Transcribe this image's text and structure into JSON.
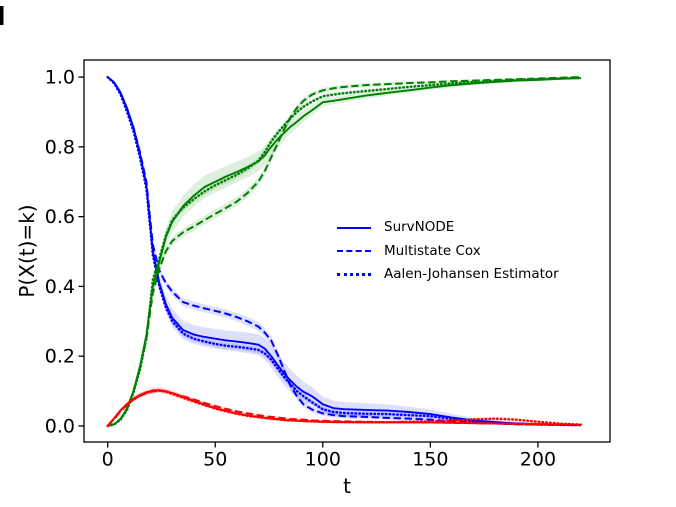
{
  "chart_data": {
    "type": "line",
    "title": "",
    "xlabel": "t",
    "ylabel": "P(X(t)=k)",
    "xlim": [
      -11,
      233.5
    ],
    "ylim": [
      -0.046,
      1.049
    ],
    "x_ticks": [
      0,
      50,
      100,
      150,
      200
    ],
    "y_ticks": [
      0.0,
      0.2,
      0.4,
      0.6,
      0.8,
      1.0
    ],
    "grid": false,
    "band_opacity": 0.13,
    "colors": {
      "blue": "#0000ff",
      "green": "#008000",
      "red": "#ff0000"
    },
    "legend": {
      "position": "center right",
      "frame": false,
      "color": "#0000ff",
      "items": [
        {
          "label": "SurvNODE",
          "line": "solid"
        },
        {
          "label": "Multistate Cox",
          "line": "dashed"
        },
        {
          "label": "Aalen-Johansen Estimator",
          "line": "dotted"
        }
      ]
    },
    "t": [
      0,
      3,
      6,
      9,
      12,
      15,
      18,
      21,
      24,
      27,
      30,
      35,
      40,
      45,
      50,
      55,
      60,
      65,
      70,
      73,
      76,
      79,
      82,
      85,
      88,
      91,
      95,
      100,
      105,
      110,
      120,
      130,
      140,
      150,
      160,
      170,
      180,
      190,
      200,
      210,
      220
    ],
    "series": [
      {
        "id": "survnode-state-blue",
        "method": "SurvNODE",
        "state": "state-blue",
        "line": "solid",
        "color": "blue",
        "values": [
          1.0,
          0.985,
          0.955,
          0.91,
          0.855,
          0.78,
          0.69,
          0.5,
          0.41,
          0.35,
          0.31,
          0.275,
          0.262,
          0.255,
          0.25,
          0.245,
          0.242,
          0.238,
          0.233,
          0.222,
          0.2,
          0.175,
          0.15,
          0.13,
          0.112,
          0.098,
          0.085,
          0.062,
          0.051,
          0.048,
          0.046,
          0.044,
          0.04,
          0.034,
          0.024,
          0.016,
          0.011,
          0.007,
          0.005,
          0.004,
          0.003
        ],
        "band_halfwidth_points": [
          [
            0,
            0.002
          ],
          [
            10,
            0.012
          ],
          [
            20,
            0.02
          ],
          [
            30,
            0.026
          ],
          [
            50,
            0.028
          ],
          [
            70,
            0.03
          ],
          [
            80,
            0.034
          ],
          [
            90,
            0.03
          ],
          [
            100,
            0.022
          ],
          [
            130,
            0.018
          ],
          [
            150,
            0.013
          ],
          [
            170,
            0.008
          ],
          [
            200,
            0.004
          ],
          [
            220,
            0.003
          ]
        ]
      },
      {
        "id": "cox-state-blue",
        "method": "Multistate Cox",
        "state": "state-blue",
        "line": "dashed",
        "color": "blue",
        "values": [
          1.0,
          0.985,
          0.955,
          0.91,
          0.855,
          0.785,
          0.7,
          0.52,
          0.445,
          0.41,
          0.385,
          0.355,
          0.345,
          0.337,
          0.33,
          0.322,
          0.312,
          0.3,
          0.285,
          0.268,
          0.245,
          0.205,
          0.16,
          0.115,
          0.085,
          0.062,
          0.047,
          0.036,
          0.031,
          0.028,
          0.026,
          0.023,
          0.021,
          0.018,
          0.013,
          0.009,
          0.007,
          0.005,
          0.004,
          0.003,
          0.002
        ],
        "band_halfwidth_points": [
          [
            0,
            0.001
          ],
          [
            15,
            0.008
          ],
          [
            30,
            0.011
          ],
          [
            60,
            0.012
          ],
          [
            75,
            0.013
          ],
          [
            85,
            0.011
          ],
          [
            100,
            0.007
          ],
          [
            130,
            0.005
          ],
          [
            160,
            0.003
          ],
          [
            220,
            0.002
          ]
        ]
      },
      {
        "id": "aalen-johansen-state-blue",
        "method": "Aalen-Johansen Estimator",
        "state": "state-blue",
        "line": "dotted",
        "color": "blue",
        "values": [
          1.0,
          0.982,
          0.95,
          0.9,
          0.845,
          0.77,
          0.68,
          0.49,
          0.4,
          0.34,
          0.3,
          0.265,
          0.25,
          0.242,
          0.235,
          0.23,
          0.227,
          0.223,
          0.218,
          0.208,
          0.19,
          0.165,
          0.14,
          0.12,
          0.1,
          0.085,
          0.068,
          0.048,
          0.04,
          0.037,
          0.035,
          0.034,
          0.031,
          0.028,
          0.02,
          0.013,
          0.009,
          0.006,
          0.004,
          0.003,
          0.002
        ],
        "band_halfwidth_points": [
          [
            0,
            0.001
          ],
          [
            15,
            0.006
          ],
          [
            30,
            0.008
          ],
          [
            60,
            0.009
          ],
          [
            80,
            0.01
          ],
          [
            100,
            0.007
          ],
          [
            130,
            0.006
          ],
          [
            160,
            0.004
          ],
          [
            220,
            0.002
          ]
        ]
      },
      {
        "id": "survnode-state-green",
        "method": "SurvNODE",
        "state": "state-green",
        "line": "solid",
        "color": "green",
        "values": [
          0.0,
          0.005,
          0.02,
          0.05,
          0.1,
          0.17,
          0.26,
          0.4,
          0.47,
          0.54,
          0.585,
          0.63,
          0.66,
          0.685,
          0.7,
          0.715,
          0.728,
          0.742,
          0.758,
          0.775,
          0.8,
          0.822,
          0.84,
          0.858,
          0.872,
          0.888,
          0.905,
          0.928,
          0.932,
          0.937,
          0.947,
          0.955,
          0.962,
          0.97,
          0.977,
          0.982,
          0.986,
          0.99,
          0.992,
          0.995,
          0.997
        ],
        "band_halfwidth_points": [
          [
            0,
            0.001
          ],
          [
            10,
            0.008
          ],
          [
            20,
            0.02
          ],
          [
            30,
            0.03
          ],
          [
            45,
            0.032
          ],
          [
            60,
            0.03
          ],
          [
            75,
            0.028
          ],
          [
            85,
            0.02
          ],
          [
            95,
            0.014
          ],
          [
            105,
            0.01
          ],
          [
            130,
            0.008
          ],
          [
            160,
            0.006
          ],
          [
            190,
            0.004
          ],
          [
            220,
            0.003
          ]
        ]
      },
      {
        "id": "cox-state-green",
        "method": "Multistate Cox",
        "state": "state-green",
        "line": "dashed",
        "color": "green",
        "values": [
          0.0,
          0.005,
          0.02,
          0.05,
          0.1,
          0.165,
          0.25,
          0.38,
          0.45,
          0.5,
          0.53,
          0.555,
          0.572,
          0.59,
          0.608,
          0.625,
          0.643,
          0.668,
          0.7,
          0.73,
          0.77,
          0.81,
          0.85,
          0.885,
          0.912,
          0.932,
          0.95,
          0.962,
          0.968,
          0.972,
          0.977,
          0.98,
          0.983,
          0.985,
          0.988,
          0.99,
          0.992,
          0.994,
          0.996,
          0.998,
          1.0
        ],
        "band_halfwidth_points": [
          [
            0,
            0.001
          ],
          [
            15,
            0.008
          ],
          [
            30,
            0.012
          ],
          [
            60,
            0.013
          ],
          [
            80,
            0.012
          ],
          [
            100,
            0.007
          ],
          [
            130,
            0.005
          ],
          [
            180,
            0.003
          ],
          [
            220,
            0.002
          ]
        ]
      },
      {
        "id": "aalen-johansen-state-green",
        "method": "Aalen-Johansen Estimator",
        "state": "state-green",
        "line": "dotted",
        "color": "green",
        "values": [
          0.0,
          0.004,
          0.018,
          0.045,
          0.095,
          0.16,
          0.25,
          0.42,
          0.48,
          0.545,
          0.59,
          0.625,
          0.65,
          0.672,
          0.69,
          0.705,
          0.72,
          0.738,
          0.76,
          0.785,
          0.815,
          0.84,
          0.862,
          0.882,
          0.9,
          0.915,
          0.93,
          0.945,
          0.95,
          0.954,
          0.96,
          0.966,
          0.972,
          0.977,
          0.982,
          0.986,
          0.989,
          0.992,
          0.994,
          0.996,
          0.998
        ],
        "band_halfwidth_points": [
          [
            0,
            0.001
          ],
          [
            15,
            0.006
          ],
          [
            30,
            0.009
          ],
          [
            60,
            0.01
          ],
          [
            80,
            0.009
          ],
          [
            100,
            0.006
          ],
          [
            150,
            0.004
          ],
          [
            220,
            0.002
          ]
        ]
      },
      {
        "id": "survnode-state-red",
        "method": "SurvNODE",
        "state": "state-red",
        "line": "solid",
        "color": "red",
        "values": [
          0.0,
          0.022,
          0.045,
          0.063,
          0.078,
          0.089,
          0.097,
          0.102,
          0.103,
          0.1,
          0.094,
          0.083,
          0.072,
          0.061,
          0.051,
          0.043,
          0.036,
          0.03,
          0.026,
          0.023,
          0.021,
          0.019,
          0.017,
          0.016,
          0.015,
          0.014,
          0.013,
          0.012,
          0.011,
          0.011,
          0.01,
          0.01,
          0.01,
          0.01,
          0.009,
          0.008,
          0.007,
          0.006,
          0.005,
          0.004,
          0.003
        ],
        "band_halfwidth_points": [
          [
            0,
            0.001
          ],
          [
            10,
            0.006
          ],
          [
            20,
            0.009
          ],
          [
            30,
            0.008
          ],
          [
            50,
            0.006
          ],
          [
            80,
            0.004
          ],
          [
            120,
            0.003
          ],
          [
            190,
            0.003
          ],
          [
            220,
            0.002
          ]
        ]
      },
      {
        "id": "cox-state-red",
        "method": "Multistate Cox",
        "state": "state-red",
        "line": "dashed",
        "color": "red",
        "values": [
          0.0,
          0.02,
          0.042,
          0.06,
          0.075,
          0.086,
          0.094,
          0.099,
          0.101,
          0.099,
          0.094,
          0.085,
          0.076,
          0.066,
          0.057,
          0.049,
          0.042,
          0.036,
          0.031,
          0.028,
          0.026,
          0.024,
          0.022,
          0.02,
          0.019,
          0.018,
          0.016,
          0.015,
          0.014,
          0.013,
          0.012,
          0.011,
          0.011,
          0.01,
          0.009,
          0.008,
          0.007,
          0.006,
          0.005,
          0.004,
          0.003
        ],
        "band_halfwidth_points": [
          [
            0,
            0.001
          ],
          [
            15,
            0.004
          ],
          [
            30,
            0.004
          ],
          [
            60,
            0.003
          ],
          [
            120,
            0.002
          ],
          [
            220,
            0.002
          ]
        ]
      },
      {
        "id": "aalen-johansen-state-red",
        "method": "Aalen-Johansen Estimator",
        "state": "state-red",
        "line": "dotted",
        "color": "red",
        "values": [
          0.0,
          0.021,
          0.044,
          0.061,
          0.076,
          0.087,
          0.095,
          0.1,
          0.101,
          0.098,
          0.092,
          0.081,
          0.07,
          0.06,
          0.05,
          0.042,
          0.035,
          0.029,
          0.025,
          0.023,
          0.021,
          0.019,
          0.017,
          0.016,
          0.015,
          0.014,
          0.013,
          0.012,
          0.012,
          0.011,
          0.011,
          0.011,
          0.012,
          0.013,
          0.015,
          0.019,
          0.021,
          0.018,
          0.012,
          0.007,
          0.004
        ],
        "band_halfwidth_points": [
          [
            0,
            0.001
          ],
          [
            15,
            0.004
          ],
          [
            30,
            0.004
          ],
          [
            60,
            0.003
          ],
          [
            120,
            0.003
          ],
          [
            160,
            0.004
          ],
          [
            180,
            0.005
          ],
          [
            200,
            0.004
          ],
          [
            220,
            0.002
          ]
        ]
      }
    ]
  }
}
